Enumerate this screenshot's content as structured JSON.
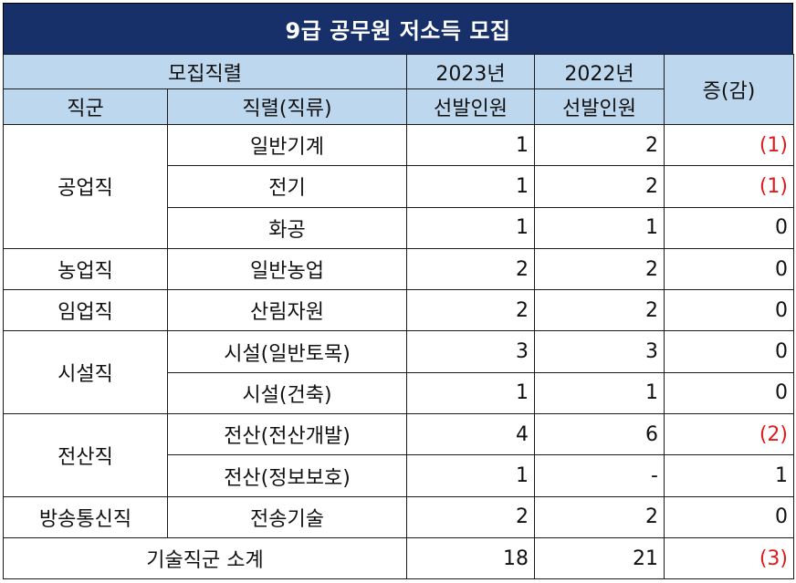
{
  "title": "9급 공무원 저소득 모집",
  "header": {
    "group": "모집직렬",
    "col_jikgun": "직군",
    "col_jikryeol": "직렬(직류)",
    "year_2023": "2023년",
    "year_2022": "2022년",
    "sub_2023": "선발인원",
    "sub_2022": "선발인원",
    "change": "증(감)"
  },
  "groups": [
    {
      "name": "공업직",
      "rows": [
        {
          "jikryeol": "일반기계",
          "y2023": "1",
          "y2022": "2",
          "change": "(1)"
        },
        {
          "jikryeol": "전기",
          "y2023": "1",
          "y2022": "2",
          "change": "(1)"
        },
        {
          "jikryeol": "화공",
          "y2023": "1",
          "y2022": "1",
          "change": "0"
        }
      ]
    },
    {
      "name": "농업직",
      "rows": [
        {
          "jikryeol": "일반농업",
          "y2023": "2",
          "y2022": "2",
          "change": "0"
        }
      ]
    },
    {
      "name": "임업직",
      "rows": [
        {
          "jikryeol": "산림자원",
          "y2023": "2",
          "y2022": "2",
          "change": "0"
        }
      ]
    },
    {
      "name": "시설직",
      "rows": [
        {
          "jikryeol": "시설(일반토목)",
          "y2023": "3",
          "y2022": "3",
          "change": "0"
        },
        {
          "jikryeol": "시설(건축)",
          "y2023": "1",
          "y2022": "1",
          "change": "0"
        }
      ]
    },
    {
      "name": "전산직",
      "rows": [
        {
          "jikryeol": "전산(전산개발)",
          "y2023": "4",
          "y2022": "6",
          "change": "(2)"
        },
        {
          "jikryeol": "전산(정보보호)",
          "y2023": "1",
          "y2022": "-",
          "change": "1"
        }
      ]
    },
    {
      "name": "방송통신직",
      "rows": [
        {
          "jikryeol": "전송기술",
          "y2023": "2",
          "y2022": "2",
          "change": "0"
        }
      ]
    }
  ],
  "total": {
    "label": "기술직군 소계",
    "y2023": "18",
    "y2022": "21",
    "change": "(3)"
  },
  "colors": {
    "title_bg": "#17306a",
    "header_bg": "#bdd7ee",
    "negative": "#e01b1b"
  }
}
